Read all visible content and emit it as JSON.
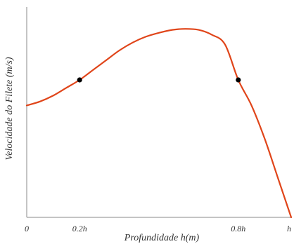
{
  "chart_data": {
    "type": "line",
    "xlabel": "Profundidade h(m)",
    "ylabel": "Velocidade do Filete (m/s)",
    "xlim": [
      0,
      1
    ],
    "ylim": [
      0,
      1
    ],
    "x_ticks": [
      {
        "value": 0,
        "label": "0"
      },
      {
        "value": 0.2,
        "label": "0.2h"
      },
      {
        "value": 0.8,
        "label": "0.8h"
      },
      {
        "value": 1.0,
        "label": "h"
      }
    ],
    "series": [
      {
        "color": "#e0451a",
        "x": [
          0,
          0.05,
          0.1,
          0.15,
          0.2,
          0.25,
          0.3,
          0.35,
          0.4,
          0.45,
          0.5,
          0.55,
          0.6,
          0.65,
          0.7,
          0.75,
          0.8,
          0.85,
          0.9,
          0.95,
          1.0
        ],
        "y": [
          0.57,
          0.59,
          0.62,
          0.66,
          0.7,
          0.75,
          0.8,
          0.85,
          0.89,
          0.92,
          0.94,
          0.955,
          0.96,
          0.955,
          0.93,
          0.88,
          0.7,
          0.57,
          0.4,
          0.2,
          0.0
        ]
      }
    ],
    "markers": [
      {
        "x": 0.2,
        "y": 0.7
      },
      {
        "x": 0.8,
        "y": 0.7
      }
    ],
    "grid": false
  }
}
